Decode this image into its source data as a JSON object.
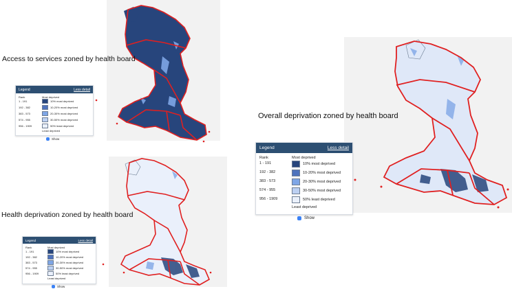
{
  "legend": {
    "title": "Legend",
    "toggle_label": "Less detail",
    "rank_heading": "Rank",
    "most_label": "Most deprived",
    "least_label": "Least deprived",
    "show_label": "Show",
    "ranks": [
      "1 - 191",
      "192 - 382",
      "383 - 573",
      "574 - 955",
      "956 - 1909"
    ],
    "categories": [
      "10% most deprived",
      "10-20% most deprived",
      "20-30% most deprived",
      "30-50% most deprived",
      "50% least deprived"
    ],
    "colors": [
      "#27457c",
      "#4f73bd",
      "#7fa6e6",
      "#bcd0f2",
      "#eaf0fb"
    ]
  },
  "maps": [
    {
      "id": "access",
      "caption": "Access to services zoned by health board",
      "fill": "#27457c"
    },
    {
      "id": "health",
      "caption": "Health deprivation zoned by health board",
      "fill": "#eaf0fb"
    },
    {
      "id": "overall",
      "caption": "Overall deprivation zoned by health board",
      "fill": "#dfe8f8"
    }
  ],
  "colors": {
    "boundary": "#e02020",
    "legend_header": "#2d4f72"
  }
}
